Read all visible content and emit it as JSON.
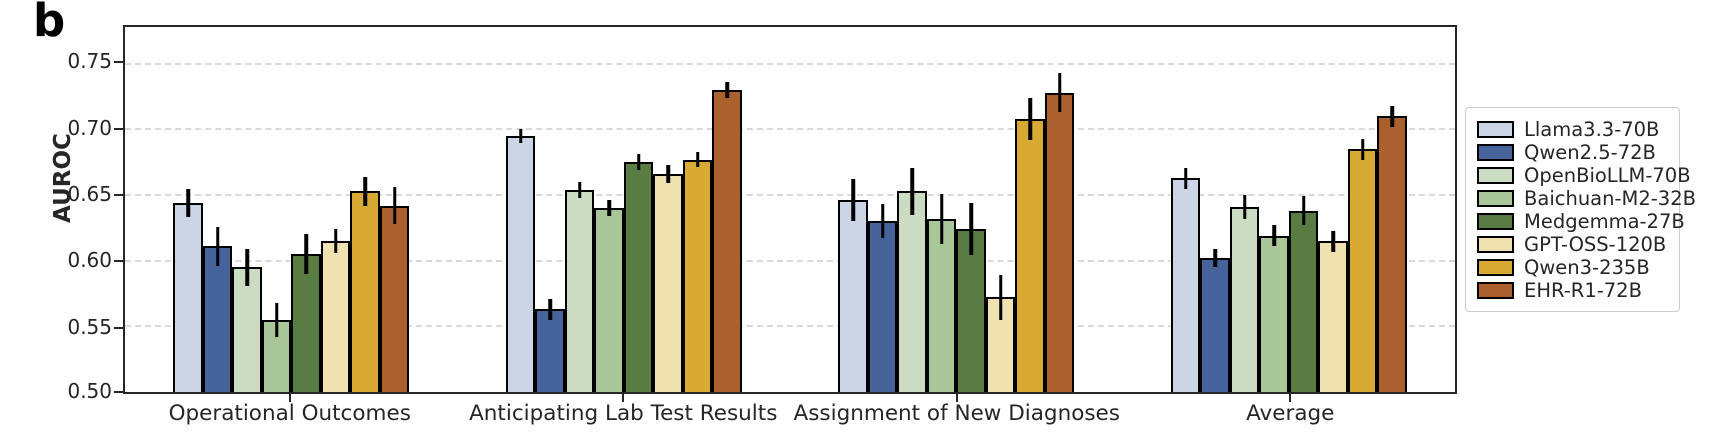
{
  "panel_label": "b",
  "ui_colors": {
    "axis": "#262626",
    "grid": "#d9d9d9",
    "bar_edge": "#000000",
    "error_bar": "#000000",
    "legend_border": "#cccccc",
    "background": "#ffffff"
  },
  "chart_data": {
    "type": "bar",
    "title": "",
    "xlabel": "",
    "ylabel": "AUROC",
    "ylim": [
      0.5,
      0.778
    ],
    "yticks": [
      0.5,
      0.55,
      0.6,
      0.65,
      0.7,
      0.75
    ],
    "grid": "horizontal dashed at yticks (except 0.50 baseline)",
    "legend_position": "outside right",
    "error_bars": true,
    "categories": [
      "Operational Outcomes",
      "Anticipating Lab Test Results",
      "Assignment of New Diagnoses",
      "Average"
    ],
    "series": [
      {
        "name": "Llama3.3-70B",
        "color": "#ccd5e6",
        "values": [
          0.644,
          0.695,
          0.646,
          0.663
        ],
        "errors": [
          0.011,
          0.005,
          0.016,
          0.008
        ]
      },
      {
        "name": "Qwen2.5-72B",
        "color": "#46639b",
        "values": [
          0.611,
          0.563,
          0.63,
          0.602
        ],
        "errors": [
          0.015,
          0.008,
          0.013,
          0.007
        ]
      },
      {
        "name": "OpenBioLLM-70B",
        "color": "#cbdcc2",
        "values": [
          0.595,
          0.654,
          0.653,
          0.641
        ],
        "errors": [
          0.014,
          0.006,
          0.018,
          0.009
        ]
      },
      {
        "name": "Baichuan-M2-32B",
        "color": "#a8c698",
        "values": [
          0.555,
          0.64,
          0.632,
          0.619
        ],
        "errors": [
          0.013,
          0.006,
          0.019,
          0.008
        ]
      },
      {
        "name": "Medgemma-27B",
        "color": "#597c42",
        "values": [
          0.605,
          0.675,
          0.624,
          0.638
        ],
        "errors": [
          0.015,
          0.006,
          0.02,
          0.011
        ]
      },
      {
        "name": "GPT-OSS-120B",
        "color": "#f0e2b0",
        "values": [
          0.615,
          0.666,
          0.572,
          0.615
        ],
        "errors": [
          0.009,
          0.007,
          0.017,
          0.008
        ]
      },
      {
        "name": "Qwen3-235B",
        "color": "#d8a933",
        "values": [
          0.653,
          0.677,
          0.708,
          0.685
        ],
        "errors": [
          0.011,
          0.006,
          0.016,
          0.008
        ]
      },
      {
        "name": "EHR-R1-72B",
        "color": "#aa612e",
        "values": [
          0.642,
          0.73,
          0.728,
          0.71
        ],
        "errors": [
          0.014,
          0.006,
          0.015,
          0.008
        ]
      }
    ]
  }
}
